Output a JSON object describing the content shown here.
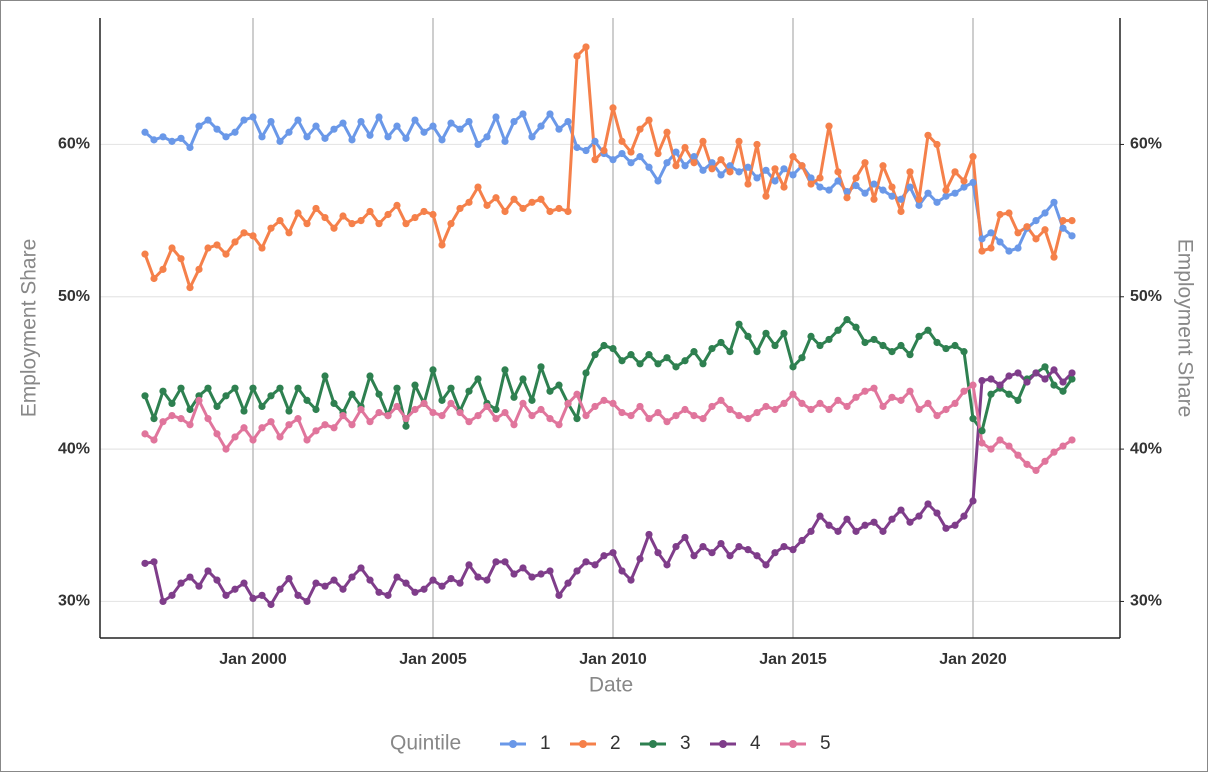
{
  "chart_data": {
    "type": "line",
    "y_label": "Employment Share",
    "y2_label": "Employment Share",
    "x_label": "Date",
    "legend_title": "Quintile",
    "legend": "bottom",
    "grid": true,
    "xlim": [
      "1995-10",
      "2024-02"
    ],
    "xticks": [
      {
        "value": "2000-01",
        "label": "Jan 2000"
      },
      {
        "value": "2005-01",
        "label": "Jan 2005"
      },
      {
        "value": "2010-01",
        "label": "Jan 2010"
      },
      {
        "value": "2015-01",
        "label": "Jan 2015"
      },
      {
        "value": "2020-01",
        "label": "Jan 2020"
      }
    ],
    "ylim": [
      27.6,
      68.3
    ],
    "yticks": [
      {
        "value": 30,
        "label": "30%"
      },
      {
        "value": 40,
        "label": "40%"
      },
      {
        "value": 50,
        "label": "50%"
      },
      {
        "value": 60,
        "label": "60%"
      }
    ],
    "y2lim": [
      27.6,
      68.3
    ],
    "y2ticks": [
      {
        "value": 30,
        "label": "30%"
      },
      {
        "value": 40,
        "label": "40%"
      },
      {
        "value": 50,
        "label": "50%"
      },
      {
        "value": 60,
        "label": "60%"
      }
    ],
    "x": [
      "1997-01",
      "1997-04",
      "1997-07",
      "1997-10",
      "1998-01",
      "1998-04",
      "1998-07",
      "1998-10",
      "1999-01",
      "1999-04",
      "1999-07",
      "1999-10",
      "2000-01",
      "2000-04",
      "2000-07",
      "2000-10",
      "2001-01",
      "2001-04",
      "2001-07",
      "2001-10",
      "2002-01",
      "2002-04",
      "2002-07",
      "2002-10",
      "2003-01",
      "2003-04",
      "2003-07",
      "2003-10",
      "2004-01",
      "2004-04",
      "2004-07",
      "2004-10",
      "2005-01",
      "2005-04",
      "2005-07",
      "2005-10",
      "2006-01",
      "2006-04",
      "2006-07",
      "2006-10",
      "2007-01",
      "2007-04",
      "2007-07",
      "2007-10",
      "2008-01",
      "2008-04",
      "2008-07",
      "2008-10",
      "2009-01",
      "2009-04",
      "2009-07",
      "2009-10",
      "2010-01",
      "2010-04",
      "2010-07",
      "2010-10",
      "2011-01",
      "2011-04",
      "2011-07",
      "2011-10",
      "2012-01",
      "2012-04",
      "2012-07",
      "2012-10",
      "2013-01",
      "2013-04",
      "2013-07",
      "2013-10",
      "2014-01",
      "2014-04",
      "2014-07",
      "2014-10",
      "2015-01",
      "2015-04",
      "2015-07",
      "2015-10",
      "2016-01",
      "2016-04",
      "2016-07",
      "2016-10",
      "2017-01",
      "2017-04",
      "2017-07",
      "2017-10",
      "2018-01",
      "2018-04",
      "2018-07",
      "2018-10",
      "2019-01",
      "2019-04",
      "2019-07",
      "2019-10",
      "2020-01",
      "2020-04",
      "2020-07",
      "2020-10",
      "2021-01",
      "2021-04",
      "2021-07",
      "2021-10",
      "2022-01",
      "2022-04",
      "2022-07",
      "2022-10"
    ],
    "series": [
      {
        "name": "1",
        "color": "#6a98e8",
        "values": [
          60.8,
          60.3,
          60.5,
          60.2,
          60.4,
          59.8,
          61.2,
          61.6,
          61.0,
          60.5,
          60.8,
          61.6,
          61.8,
          60.5,
          61.5,
          60.2,
          60.8,
          61.6,
          60.5,
          61.2,
          60.4,
          61.0,
          61.4,
          60.3,
          61.5,
          60.6,
          61.8,
          60.5,
          61.2,
          60.4,
          61.6,
          60.8,
          61.2,
          60.3,
          61.4,
          61.0,
          61.5,
          60.0,
          60.5,
          61.8,
          60.2,
          61.5,
          62.0,
          60.5,
          61.2,
          62.0,
          61.0,
          61.5,
          59.8,
          59.6,
          60.2,
          59.4,
          59.0,
          59.4,
          58.8,
          59.2,
          58.5,
          57.6,
          58.8,
          59.5,
          58.6,
          59.2,
          58.3,
          58.8,
          58.0,
          58.6,
          58.2,
          58.5,
          57.8,
          58.3,
          57.6,
          58.4,
          58.0,
          58.6,
          57.8,
          57.2,
          57.0,
          57.6,
          56.9,
          57.3,
          56.8,
          57.4,
          57.0,
          56.6,
          56.4,
          57.2,
          56.0,
          56.8,
          56.2,
          56.6,
          56.8,
          57.2,
          57.5,
          53.8,
          54.2,
          53.6,
          53.0,
          53.2,
          54.5,
          55.0,
          55.5,
          56.2,
          54.5,
          54.0
        ]
      },
      {
        "name": "2",
        "color": "#f5804a",
        "values": [
          52.8,
          51.2,
          51.8,
          53.2,
          52.5,
          50.6,
          51.8,
          53.2,
          53.4,
          52.8,
          53.6,
          54.2,
          54.0,
          53.2,
          54.5,
          55.0,
          54.2,
          55.5,
          54.8,
          55.8,
          55.2,
          54.5,
          55.3,
          54.8,
          55.0,
          55.6,
          54.8,
          55.4,
          56.0,
          54.8,
          55.2,
          55.6,
          55.4,
          53.4,
          54.8,
          55.8,
          56.2,
          57.2,
          56.0,
          56.5,
          55.6,
          56.4,
          55.8,
          56.2,
          56.4,
          55.6,
          55.8,
          55.6,
          65.8,
          66.4,
          59.0,
          59.6,
          62.4,
          60.2,
          59.5,
          61.0,
          61.6,
          59.4,
          60.8,
          58.6,
          59.8,
          58.8,
          60.2,
          58.4,
          59.0,
          58.2,
          60.2,
          57.4,
          60.0,
          56.6,
          58.4,
          57.2,
          59.2,
          58.6,
          57.4,
          57.8,
          61.2,
          58.2,
          56.5,
          57.8,
          58.8,
          56.4,
          58.6,
          57.2,
          55.6,
          58.2,
          56.4,
          60.6,
          60.0,
          57.0,
          58.2,
          57.6,
          59.2,
          53.0,
          53.2,
          55.4,
          55.5,
          54.2,
          54.6,
          53.8,
          54.4,
          52.6,
          55.0,
          55.0
        ]
      },
      {
        "name": "3",
        "color": "#2e8050",
        "values": [
          43.5,
          42.0,
          43.8,
          43.0,
          44.0,
          42.6,
          43.5,
          44.0,
          42.8,
          43.5,
          44.0,
          42.5,
          44.0,
          42.8,
          43.5,
          44.0,
          42.5,
          44.0,
          43.2,
          42.6,
          44.8,
          43.0,
          42.4,
          43.6,
          42.8,
          44.8,
          43.6,
          42.2,
          44.0,
          41.5,
          44.2,
          43.0,
          45.2,
          43.2,
          44.0,
          42.5,
          43.8,
          44.6,
          43.0,
          42.6,
          45.2,
          43.4,
          44.6,
          43.2,
          45.4,
          43.8,
          44.2,
          43.0,
          42.0,
          45.0,
          46.2,
          46.8,
          46.6,
          45.8,
          46.2,
          45.6,
          46.2,
          45.6,
          46.0,
          45.4,
          45.8,
          46.4,
          45.6,
          46.6,
          47.0,
          46.4,
          48.2,
          47.4,
          46.4,
          47.6,
          46.8,
          47.6,
          45.4,
          46.0,
          47.4,
          46.8,
          47.2,
          47.8,
          48.5,
          48.0,
          47.0,
          47.2,
          46.8,
          46.4,
          46.8,
          46.2,
          47.4,
          47.8,
          47.0,
          46.6,
          46.8,
          46.4,
          42.0,
          41.2,
          43.6,
          44.0,
          43.6,
          43.2,
          44.6,
          45.0,
          45.4,
          44.2,
          43.8,
          44.6
        ]
      },
      {
        "name": "4",
        "color": "#7f3d8a",
        "values": [
          32.5,
          32.6,
          30.0,
          30.4,
          31.2,
          31.6,
          31.0,
          32.0,
          31.4,
          30.4,
          30.8,
          31.2,
          30.2,
          30.4,
          29.8,
          30.8,
          31.5,
          30.4,
          30.0,
          31.2,
          31.0,
          31.4,
          30.8,
          31.6,
          32.2,
          31.4,
          30.6,
          30.4,
          31.6,
          31.2,
          30.6,
          30.8,
          31.4,
          31.0,
          31.5,
          31.2,
          32.4,
          31.6,
          31.4,
          32.6,
          32.6,
          31.8,
          32.2,
          31.6,
          31.8,
          32.0,
          30.4,
          31.2,
          32.0,
          32.6,
          32.4,
          33.0,
          33.2,
          32.0,
          31.4,
          32.8,
          34.4,
          33.2,
          32.4,
          33.6,
          34.2,
          33.0,
          33.6,
          33.2,
          33.8,
          33.0,
          33.6,
          33.4,
          33.0,
          32.4,
          33.2,
          33.6,
          33.4,
          34.0,
          34.6,
          35.6,
          35.0,
          34.6,
          35.4,
          34.6,
          35.0,
          35.2,
          34.6,
          35.4,
          36.0,
          35.2,
          35.6,
          36.4,
          35.8,
          34.8,
          35.0,
          35.6,
          36.6,
          44.5,
          44.6,
          44.2,
          44.8,
          45.0,
          44.4,
          45.0,
          44.6,
          45.2,
          44.4,
          45.0
        ]
      },
      {
        "name": "5",
        "color": "#e0759c",
        "values": [
          41.0,
          40.6,
          41.8,
          42.2,
          42.0,
          41.6,
          43.2,
          42.0,
          41.0,
          40.0,
          40.8,
          41.4,
          40.6,
          41.4,
          41.8,
          40.8,
          41.6,
          42.0,
          40.6,
          41.2,
          41.6,
          41.4,
          42.2,
          41.6,
          42.6,
          41.8,
          42.4,
          42.2,
          42.8,
          42.0,
          42.6,
          43.0,
          42.4,
          42.2,
          43.0,
          42.4,
          41.8,
          42.2,
          42.8,
          42.0,
          42.4,
          41.6,
          43.0,
          42.2,
          42.6,
          42.0,
          41.6,
          43.0,
          43.6,
          42.2,
          42.8,
          43.2,
          43.0,
          42.4,
          42.2,
          42.8,
          42.0,
          42.4,
          41.8,
          42.2,
          42.6,
          42.2,
          42.0,
          42.8,
          43.2,
          42.6,
          42.2,
          42.0,
          42.4,
          42.8,
          42.6,
          43.0,
          43.6,
          43.0,
          42.6,
          43.0,
          42.6,
          43.2,
          42.8,
          43.4,
          43.8,
          44.0,
          42.8,
          43.4,
          43.2,
          43.8,
          42.6,
          43.0,
          42.2,
          42.6,
          43.0,
          43.8,
          44.2,
          40.4,
          40.0,
          40.6,
          40.2,
          39.6,
          39.0,
          38.6,
          39.2,
          39.8,
          40.2,
          40.6
        ]
      }
    ]
  }
}
